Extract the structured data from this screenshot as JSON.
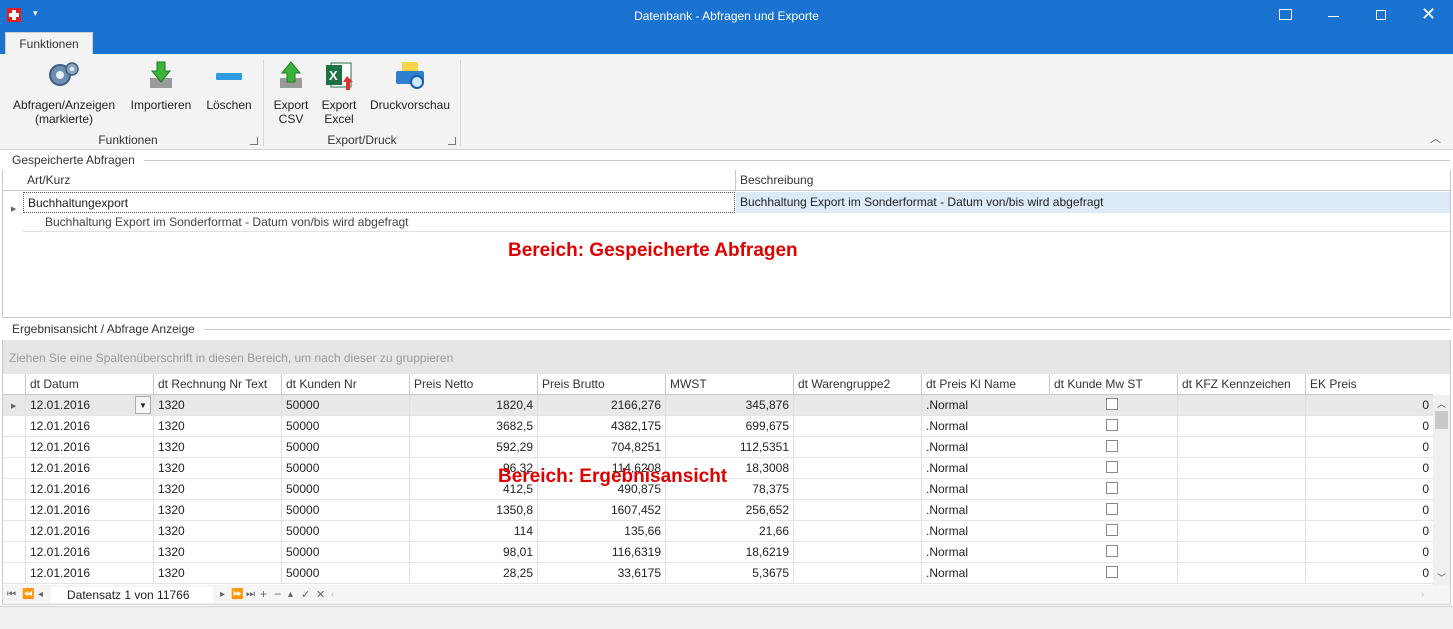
{
  "window": {
    "title": "Datenbank - Abfragen und Exporte"
  },
  "ribbon": {
    "tab": "Funktionen",
    "buttons": {
      "abfragen": "Abfragen/Anzeigen\n(markierte)",
      "importieren": "Importieren",
      "loeschen": "Löschen",
      "export_csv": "Export\nCSV",
      "export_excel": "Export\nExcel",
      "druckvorschau": "Druckvorschau"
    },
    "groups": {
      "funktionen": "Funktionen",
      "export_druck": "Export/Druck"
    }
  },
  "saved": {
    "title": "Gespeicherte Abfragen",
    "headers": [
      "Art/Kurz",
      "Beschreibung"
    ],
    "row": {
      "kurz": "Buchhaltungexport",
      "beschreibung": "Buchhaltung Export im Sonderformat - Datum von/bis wird abgefragt"
    },
    "preview": "Buchhaltung Export im Sonderformat - Datum von/bis wird abgefragt",
    "overlay": "Bereich: Gespeicherte Abfragen"
  },
  "results": {
    "title": "Ergebnisansicht / Abfrage Anzeige",
    "group_hint": "Ziehen Sie eine Spaltenüberschrift in diesen Bereich, um nach dieser zu gruppieren",
    "headers": [
      "dt Datum",
      "dt Rechnung Nr Text",
      "dt Kunden Nr",
      "Preis Netto",
      "Preis Brutto",
      "MWST",
      "dt Warengruppe2",
      "dt Preis Kl Name",
      "dt Kunde Mw ST",
      "dt KFZ Kennzeichen",
      "EK Preis"
    ],
    "rows": [
      [
        "12.01.2016",
        "1320",
        "50000",
        "1820,4",
        "2166,276",
        "345,876",
        "",
        ".Normal",
        "",
        "",
        "0"
      ],
      [
        "12.01.2016",
        "1320",
        "50000",
        "3682,5",
        "4382,175",
        "699,675",
        "",
        ".Normal",
        "",
        "",
        "0"
      ],
      [
        "12.01.2016",
        "1320",
        "50000",
        "592,29",
        "704,8251",
        "112,5351",
        "",
        ".Normal",
        "",
        "",
        "0"
      ],
      [
        "12.01.2016",
        "1320",
        "50000",
        "96,32",
        "114,6208",
        "18,3008",
        "",
        ".Normal",
        "",
        "",
        "0"
      ],
      [
        "12.01.2016",
        "1320",
        "50000",
        "412,5",
        "490,875",
        "78,375",
        "",
        ".Normal",
        "",
        "",
        "0"
      ],
      [
        "12.01.2016",
        "1320",
        "50000",
        "1350,8",
        "1607,452",
        "256,652",
        "",
        ".Normal",
        "",
        "",
        "0"
      ],
      [
        "12.01.2016",
        "1320",
        "50000",
        "114",
        "135,66",
        "21,66",
        "",
        ".Normal",
        "",
        "",
        "0"
      ],
      [
        "12.01.2016",
        "1320",
        "50000",
        "98,01",
        "116,6319",
        "18,6219",
        "",
        ".Normal",
        "",
        "",
        "0"
      ],
      [
        "12.01.2016",
        "1320",
        "50000",
        "28,25",
        "33,6175",
        "5,3675",
        "",
        ".Normal",
        "",
        "",
        "0"
      ]
    ],
    "overlay": "Bereich: Ergebnisansicht",
    "navigator": "Datensatz 1 von 11766"
  },
  "colors": {
    "titlebar": "#1a73d0",
    "overlay": "#e00000"
  }
}
